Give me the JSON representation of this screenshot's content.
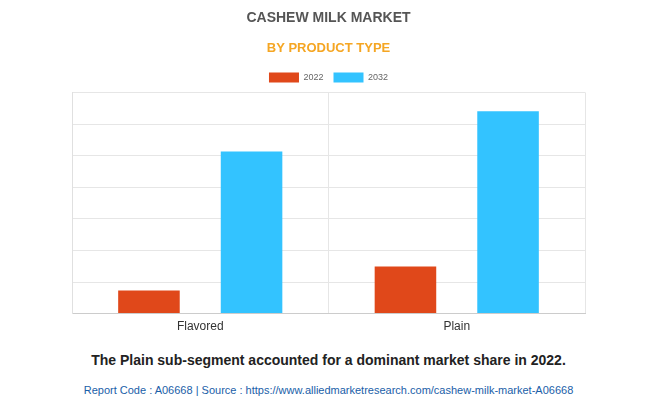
{
  "chart_data": {
    "type": "bar",
    "title": "CASHEW MILK MARKET",
    "subtitle": "BY PRODUCT TYPE",
    "categories": [
      "Flavored",
      "Plain"
    ],
    "series": [
      {
        "name": "2022",
        "color": "#e0481a",
        "values": [
          0.73,
          1.49
        ]
      },
      {
        "name": "2032",
        "color": "#33c3ff",
        "values": [
          5.13,
          6.4
        ]
      }
    ],
    "ylim": [
      0,
      7
    ],
    "yticks": [
      0,
      1,
      2,
      3,
      4,
      5,
      6,
      7
    ],
    "grid": true,
    "legend": "top",
    "tick_labels": "x",
    "annotations": [
      "The Plain sub-segment accounted for a dominant market share in 2022.",
      "Report Code : A06668  |  Source : https://www.alliedmarketresearch.com/cashew-milk-market-A06668"
    ]
  }
}
